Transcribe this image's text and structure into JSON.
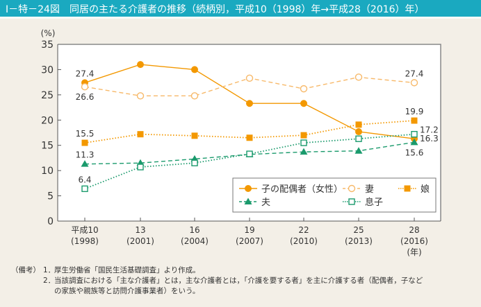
{
  "header": {
    "title": "Ⅰ－特－24図　同居の主たる介護者の推移（続柄別，平成10（1998）年→平成28（2016）年）"
  },
  "colors": {
    "title_bar": "#1aa9c0",
    "orange": "#f39800",
    "orange_light": "#f7b96a",
    "green": "#1a9a6c",
    "green_light": "#5bb897"
  },
  "chart_data": {
    "type": "line",
    "title": "同居の主たる介護者の推移（続柄別，平成10（1998）年→平成28（2016）年）",
    "ylabel": "(%)",
    "xlabel": "(年)",
    "ylim": [
      0,
      35
    ],
    "yticks": [
      0,
      5,
      10,
      15,
      20,
      25,
      30,
      35
    ],
    "categories": [
      {
        "era": "平成10",
        "year": "(1998)"
      },
      {
        "era": "13",
        "year": "(2001)"
      },
      {
        "era": "16",
        "year": "(2004)"
      },
      {
        "era": "19",
        "year": "(2007)"
      },
      {
        "era": "22",
        "year": "(2010)"
      },
      {
        "era": "25",
        "year": "(2013)"
      },
      {
        "era": "28",
        "year": "(2016)"
      }
    ],
    "grid": false,
    "legend_position": "bottom-right (inside plot)",
    "series": [
      {
        "name": "子の配偶者（女性）",
        "key": "spouse_of_child",
        "values": [
          27.4,
          31.0,
          30.0,
          23.3,
          23.3,
          17.7,
          16.3
        ],
        "color": "#f39800",
        "marker": "filled-circle",
        "line": "solid",
        "labels": [
          {
            "index": 0,
            "text": "27.4",
            "pos": "above"
          },
          {
            "index": 6,
            "text": "16.3",
            "pos": "right"
          }
        ]
      },
      {
        "name": "妻",
        "key": "wife",
        "values": [
          26.6,
          24.8,
          24.8,
          28.3,
          26.2,
          28.5,
          27.4
        ],
        "color": "#f7b96a",
        "marker": "open-circle",
        "line": "dashed",
        "labels": [
          {
            "index": 0,
            "text": "26.6",
            "pos": "below"
          },
          {
            "index": 6,
            "text": "27.4",
            "pos": "above"
          }
        ]
      },
      {
        "name": "娘",
        "key": "daughter",
        "values": [
          15.5,
          17.2,
          16.9,
          16.5,
          17.0,
          19.1,
          19.9
        ],
        "color": "#f39800",
        "marker": "filled-square",
        "line": "dotted",
        "labels": [
          {
            "index": 0,
            "text": "15.5",
            "pos": "above"
          },
          {
            "index": 6,
            "text": "19.9",
            "pos": "above"
          }
        ]
      },
      {
        "name": "夫",
        "key": "husband",
        "values": [
          11.3,
          11.5,
          12.3,
          13.2,
          13.7,
          13.9,
          15.6
        ],
        "color": "#1a9a6c",
        "marker": "filled-triangle",
        "line": "dashed",
        "labels": [
          {
            "index": 0,
            "text": "11.3",
            "pos": "above"
          },
          {
            "index": 6,
            "text": "15.6",
            "pos": "below"
          }
        ]
      },
      {
        "name": "息子",
        "key": "son",
        "values": [
          6.4,
          10.7,
          11.5,
          13.3,
          15.5,
          16.3,
          17.2
        ],
        "color": "#1a9a6c",
        "marker": "open-square",
        "line": "dotted",
        "labels": [
          {
            "index": 0,
            "text": "6.4",
            "pos": "above"
          },
          {
            "index": 6,
            "text": "17.2",
            "pos": "right-up"
          }
        ]
      }
    ]
  },
  "notes": {
    "lead": "（備考）",
    "items": [
      {
        "num": "1．",
        "lines": [
          "厚生労働省「国民生活基礎調査」より作成。"
        ]
      },
      {
        "num": "2．",
        "lines": [
          "当該調査における「主な介護者」とは，主な介護者とは，「介護を要する者」を主に介護する者（配偶者，子など",
          "の家族や親族等と訪問介護事業者）をいう。"
        ]
      }
    ]
  }
}
